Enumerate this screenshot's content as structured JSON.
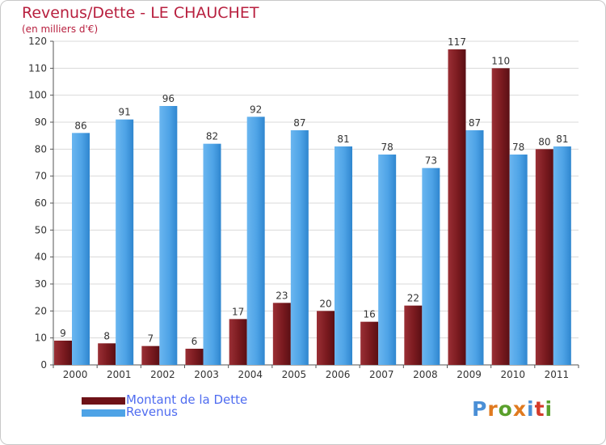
{
  "title": "Revenus/Dette - LE CHAUCHET",
  "subtitle": "(en milliers d'€)",
  "colors": {
    "title": "#b8203f",
    "debt": "#7a1a1f",
    "revenue": "#4ea3e6",
    "legend_text": "#4f6cf0",
    "grid": "#d9d9d9"
  },
  "legend": {
    "debt_label": "Montant de la Dette",
    "revenue_label": "Revenus"
  },
  "logo": {
    "letters": [
      "P",
      "r",
      "o",
      "x",
      "i",
      "t",
      "i"
    ],
    "colors": [
      "#4a8fd6",
      "#e07a1f",
      "#5aa02c",
      "#e07a1f",
      "#4a8fd6",
      "#d43a2a",
      "#5aa02c"
    ]
  },
  "chart_data": {
    "type": "bar",
    "title": "Revenus/Dette - LE CHAUCHET",
    "ylabel": "(en milliers d'€)",
    "categories": [
      "2000",
      "2001",
      "2002",
      "2003",
      "2004",
      "2005",
      "2006",
      "2007",
      "2008",
      "2009",
      "2010",
      "2011"
    ],
    "series": [
      {
        "name": "Montant de la Dette",
        "values": [
          9,
          8,
          7,
          6,
          17,
          23,
          20,
          16,
          22,
          117,
          110,
          80
        ]
      },
      {
        "name": "Revenus",
        "values": [
          86,
          91,
          96,
          82,
          92,
          87,
          81,
          78,
          73,
          87,
          78,
          81
        ]
      }
    ],
    "ylim": [
      0,
      120
    ],
    "yticks": [
      0,
      10,
      20,
      30,
      40,
      50,
      60,
      70,
      80,
      90,
      100,
      110,
      120
    ],
    "grid": true,
    "legend_position": "bottom-left"
  }
}
